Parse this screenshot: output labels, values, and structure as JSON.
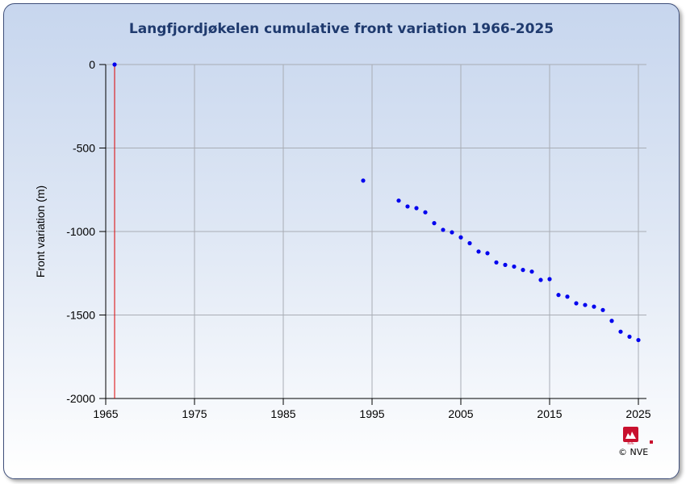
{
  "chart_data": {
    "type": "scatter",
    "title": "Langfjordjøkelen  cumulative front variation 1966-2025",
    "ylabel": "Front variation (m)",
    "xlabel": "",
    "xlim": [
      1965,
      2026
    ],
    "ylim": [
      -2000,
      0
    ],
    "xticks": [
      1965,
      1975,
      1985,
      1995,
      2005,
      2015,
      2025
    ],
    "yticks": [
      0,
      -500,
      -1000,
      -1500,
      -2000
    ],
    "grid": true,
    "point_color": "#0000ee",
    "reference_line": {
      "x": 1966,
      "color": "#dd0000"
    },
    "points": [
      {
        "x": 1966,
        "y": 0
      },
      {
        "x": 1994,
        "y": -695
      },
      {
        "x": 1998,
        "y": -815
      },
      {
        "x": 1999,
        "y": -850
      },
      {
        "x": 2000,
        "y": -860
      },
      {
        "x": 2001,
        "y": -885
      },
      {
        "x": 2002,
        "y": -950
      },
      {
        "x": 2003,
        "y": -990
      },
      {
        "x": 2004,
        "y": -1005
      },
      {
        "x": 2005,
        "y": -1035
      },
      {
        "x": 2006,
        "y": -1070
      },
      {
        "x": 2007,
        "y": -1120
      },
      {
        "x": 2008,
        "y": -1130
      },
      {
        "x": 2009,
        "y": -1185
      },
      {
        "x": 2010,
        "y": -1200
      },
      {
        "x": 2011,
        "y": -1210
      },
      {
        "x": 2012,
        "y": -1230
      },
      {
        "x": 2013,
        "y": -1240
      },
      {
        "x": 2014,
        "y": -1290
      },
      {
        "x": 2015,
        "y": -1285
      },
      {
        "x": 2016,
        "y": -1380
      },
      {
        "x": 2017,
        "y": -1390
      },
      {
        "x": 2018,
        "y": -1430
      },
      {
        "x": 2019,
        "y": -1440
      },
      {
        "x": 2020,
        "y": -1450
      },
      {
        "x": 2021,
        "y": -1470
      },
      {
        "x": 2022,
        "y": -1535
      },
      {
        "x": 2023,
        "y": -1600
      },
      {
        "x": 2024,
        "y": -1630
      },
      {
        "x": 2025,
        "y": -1650
      }
    ]
  },
  "footer": {
    "logo_text": "NVE",
    "copyright": "© NVE",
    "logo_color": "#c8102e"
  }
}
